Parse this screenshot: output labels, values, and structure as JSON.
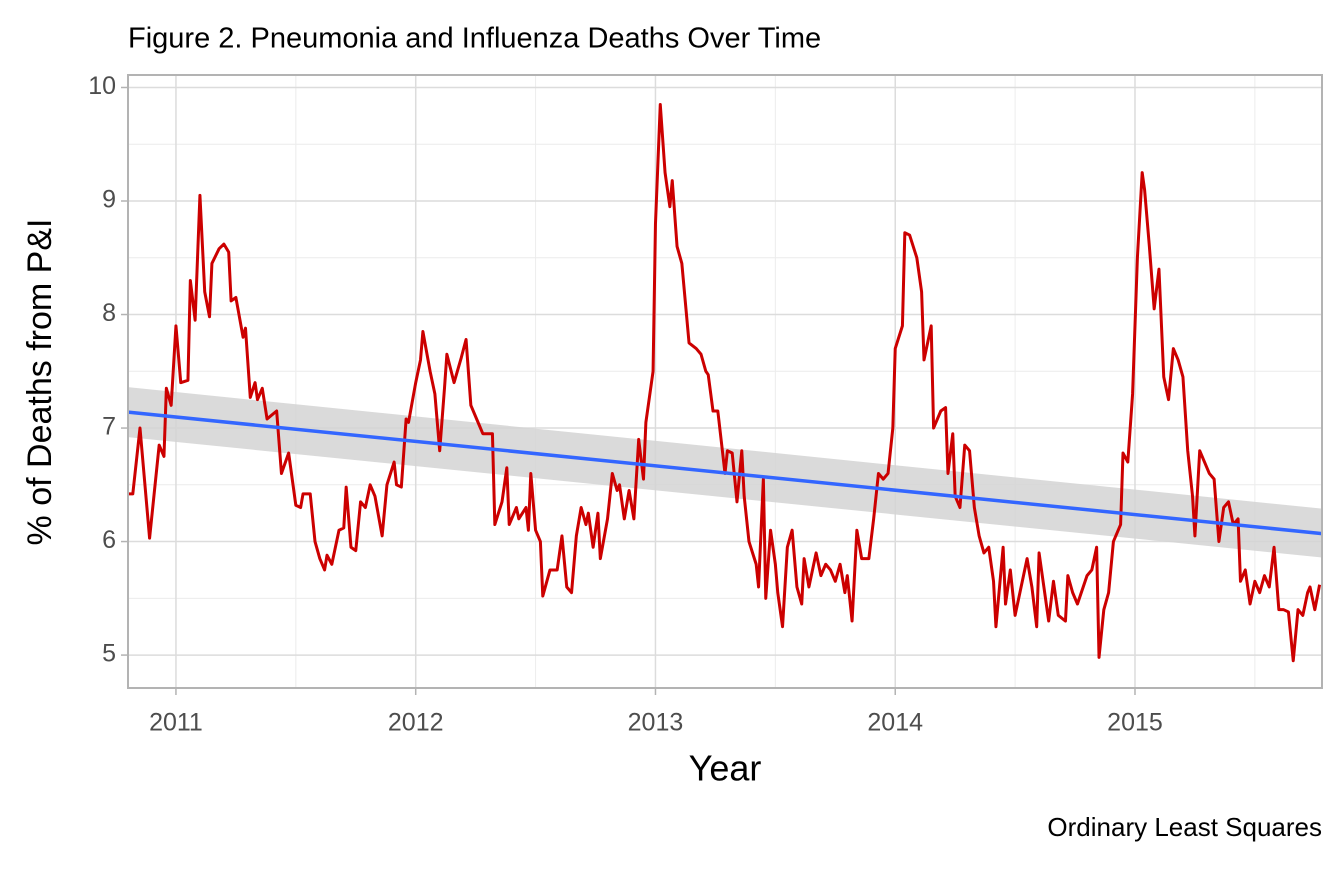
{
  "chart_data": {
    "type": "line",
    "title": "Figure 2. Pneumonia and Influenza Deaths Over Time",
    "x_label": "Year",
    "y_label": "% of Deaths from P&I",
    "caption": "Ordinary Least Squares",
    "xlim": [
      2010.8,
      2015.78
    ],
    "ylim": [
      4.71,
      10.11
    ],
    "xticks": [
      2011,
      2012,
      2013,
      2014,
      2015
    ],
    "yticks": [
      5,
      6,
      7,
      8,
      9,
      10
    ],
    "x_minor_ticks": [
      2011.5,
      2012.5,
      2013.5,
      2014.5,
      2015.5
    ],
    "y_minor_ticks": [
      5.5,
      6.5,
      7.5,
      8.5,
      9.5
    ],
    "grid": true,
    "series": [
      {
        "color": "#cc0000",
        "x": [
          2010.8,
          2010.82,
          2010.85,
          2010.89,
          2010.93,
          2010.95,
          2010.96,
          2010.98,
          2011.0,
          2011.02,
          2011.05,
          2011.06,
          2011.08,
          2011.1,
          2011.12,
          2011.14,
          2011.15,
          2011.18,
          2011.2,
          2011.22,
          2011.23,
          2011.25,
          2011.28,
          2011.29,
          2011.31,
          2011.33,
          2011.34,
          2011.36,
          2011.38,
          2011.42,
          2011.44,
          2011.47,
          2011.5,
          2011.52,
          2011.53,
          2011.56,
          2011.58,
          2011.6,
          2011.62,
          2011.63,
          2011.65,
          2011.68,
          2011.7,
          2011.71,
          2011.73,
          2011.75,
          2011.77,
          2011.79,
          2011.81,
          2011.83,
          2011.86,
          2011.88,
          2011.91,
          2011.92,
          2011.94,
          2011.96,
          2011.97,
          2012.0,
          2012.02,
          2012.03,
          2012.06,
          2012.08,
          2012.1,
          2012.12,
          2012.13,
          2012.16,
          2012.19,
          2012.21,
          2012.23,
          2012.26,
          2012.28,
          2012.32,
          2012.33,
          2012.36,
          2012.38,
          2012.39,
          2012.42,
          2012.43,
          2012.46,
          2012.47,
          2012.48,
          2012.5,
          2012.52,
          2012.53,
          2012.56,
          2012.59,
          2012.61,
          2012.63,
          2012.65,
          2012.67,
          2012.69,
          2012.71,
          2012.72,
          2012.74,
          2012.76,
          2012.77,
          2012.8,
          2012.82,
          2012.84,
          2012.85,
          2012.87,
          2012.89,
          2012.91,
          2012.93,
          2012.95,
          2012.96,
          2012.99,
          2013.0,
          2013.02,
          2013.04,
          2013.06,
          2013.07,
          2013.09,
          2013.11,
          2013.14,
          2013.17,
          2013.19,
          2013.21,
          2013.22,
          2013.24,
          2013.26,
          2013.29,
          2013.3,
          2013.32,
          2013.34,
          2013.36,
          2013.37,
          2013.39,
          2013.42,
          2013.43,
          2013.45,
          2013.46,
          2013.48,
          2013.5,
          2013.51,
          2013.53,
          2013.55,
          2013.57,
          2013.59,
          2013.61,
          2013.62,
          2013.64,
          2013.67,
          2013.69,
          2013.71,
          2013.73,
          2013.75,
          2013.77,
          2013.79,
          2013.8,
          2013.82,
          2013.84,
          2013.86,
          2013.89,
          2013.91,
          2013.93,
          2013.95,
          2013.97,
          2013.99,
          2014.0,
          2014.03,
          2014.04,
          2014.06,
          2014.09,
          2014.11,
          2014.12,
          2014.15,
          2014.16,
          2014.19,
          2014.21,
          2014.22,
          2014.24,
          2014.25,
          2014.27,
          2014.29,
          2014.31,
          2014.33,
          2014.35,
          2014.37,
          2014.39,
          2014.41,
          2014.42,
          2014.45,
          2014.46,
          2014.48,
          2014.5,
          2014.52,
          2014.55,
          2014.57,
          2014.59,
          2014.6,
          2014.62,
          2014.64,
          2014.66,
          2014.68,
          2014.71,
          2014.72,
          2014.74,
          2014.76,
          2014.8,
          2014.82,
          2014.84,
          2014.85,
          2014.87,
          2014.89,
          2014.91,
          2014.94,
          2014.95,
          2014.97,
          2014.99,
          2015.01,
          2015.03,
          2015.04,
          2015.06,
          2015.08,
          2015.1,
          2015.12,
          2015.14,
          2015.16,
          2015.18,
          2015.2,
          2015.22,
          2015.24,
          2015.25,
          2015.27,
          2015.29,
          2015.31,
          2015.33,
          2015.35,
          2015.37,
          2015.39,
          2015.41,
          2015.43,
          2015.44,
          2015.46,
          2015.48,
          2015.5,
          2015.52,
          2015.54,
          2015.56,
          2015.58,
          2015.6,
          2015.62,
          2015.64,
          2015.66,
          2015.68,
          2015.7,
          2015.72,
          2015.73,
          2015.75,
          2015.77
        ],
        "values": [
          6.42,
          6.42,
          7.0,
          6.03,
          6.85,
          6.75,
          7.35,
          7.2,
          7.9,
          7.4,
          7.42,
          8.3,
          7.95,
          9.05,
          8.2,
          7.98,
          8.45,
          8.58,
          8.62,
          8.55,
          8.12,
          8.15,
          7.8,
          7.88,
          7.27,
          7.4,
          7.25,
          7.35,
          7.08,
          7.15,
          6.6,
          6.78,
          6.32,
          6.3,
          6.42,
          6.42,
          6.0,
          5.85,
          5.75,
          5.88,
          5.8,
          6.1,
          6.12,
          6.48,
          5.95,
          5.92,
          6.35,
          6.3,
          6.5,
          6.4,
          6.05,
          6.5,
          6.7,
          6.5,
          6.48,
          7.08,
          7.05,
          7.4,
          7.6,
          7.85,
          7.5,
          7.3,
          6.8,
          7.35,
          7.65,
          7.4,
          7.62,
          7.78,
          7.2,
          7.05,
          6.95,
          6.95,
          6.15,
          6.35,
          6.65,
          6.15,
          6.3,
          6.2,
          6.3,
          6.1,
          6.6,
          6.1,
          6.0,
          5.52,
          5.75,
          5.75,
          6.05,
          5.6,
          5.55,
          6.05,
          6.3,
          6.15,
          6.25,
          5.95,
          6.25,
          5.85,
          6.2,
          6.6,
          6.45,
          6.5,
          6.2,
          6.45,
          6.2,
          6.9,
          6.55,
          7.05,
          7.5,
          8.8,
          9.85,
          9.25,
          8.95,
          9.18,
          8.6,
          8.45,
          7.75,
          7.7,
          7.65,
          7.5,
          7.47,
          7.15,
          7.15,
          6.6,
          6.8,
          6.78,
          6.35,
          6.8,
          6.4,
          6.0,
          5.8,
          5.6,
          6.55,
          5.5,
          6.1,
          5.8,
          5.55,
          5.25,
          5.95,
          6.1,
          5.6,
          5.45,
          5.85,
          5.6,
          5.9,
          5.7,
          5.8,
          5.75,
          5.65,
          5.8,
          5.55,
          5.7,
          5.3,
          6.1,
          5.85,
          5.85,
          6.2,
          6.6,
          6.55,
          6.6,
          7.0,
          7.7,
          7.9,
          8.72,
          8.7,
          8.5,
          8.2,
          7.6,
          7.9,
          7.0,
          7.15,
          7.18,
          6.6,
          6.95,
          6.4,
          6.3,
          6.85,
          6.8,
          6.3,
          6.05,
          5.9,
          5.95,
          5.65,
          5.25,
          5.95,
          5.45,
          5.75,
          5.35,
          5.55,
          5.85,
          5.6,
          5.25,
          5.9,
          5.6,
          5.3,
          5.65,
          5.35,
          5.3,
          5.7,
          5.55,
          5.45,
          5.7,
          5.75,
          5.95,
          4.98,
          5.4,
          5.55,
          6.0,
          6.15,
          6.78,
          6.7,
          7.3,
          8.5,
          9.25,
          9.1,
          8.6,
          8.05,
          8.4,
          7.45,
          7.25,
          7.7,
          7.6,
          7.45,
          6.8,
          6.4,
          6.05,
          6.8,
          6.7,
          6.6,
          6.55,
          6.0,
          6.3,
          6.35,
          6.15,
          6.2,
          5.65,
          5.75,
          5.45,
          5.65,
          5.55,
          5.7,
          5.6,
          5.95,
          5.4,
          5.4,
          5.38,
          4.95,
          5.4,
          5.35,
          5.55,
          5.6,
          5.4,
          5.62
        ]
      }
    ],
    "trend": {
      "color": "#3366ff",
      "band_color": "#d3d3d3",
      "x": [
        2010.8,
        2015.78
      ],
      "values": [
        7.14,
        6.07
      ],
      "lower": [
        6.92,
        5.86
      ],
      "upper": [
        7.36,
        6.29
      ]
    }
  }
}
